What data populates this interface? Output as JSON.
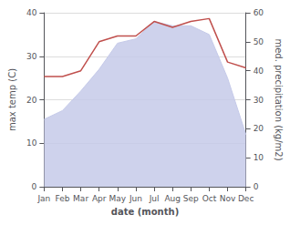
{
  "chart_data": {
    "type": "combo",
    "xlabel": "date (month)",
    "ylabel": "max temp (C)",
    "y2label": "med. precipitation (kg/m2)",
    "categories": [
      "Jan",
      "Feb",
      "Mar",
      "Apr",
      "May",
      "Jun",
      "Jul",
      "Aug",
      "Sep",
      "Oct",
      "Nov",
      "Dec"
    ],
    "series": [
      {
        "type": "area",
        "color": "#c5cae9",
        "values": [
          15.5,
          17.5,
          22,
          27,
          33,
          34,
          38,
          37,
          37,
          35,
          25,
          12
        ]
      },
      {
        "type": "line",
        "color": "#c0504d",
        "axis": "y2",
        "values": [
          38,
          38,
          40,
          50,
          52,
          52,
          57,
          55,
          57,
          58,
          43,
          41
        ]
      }
    ],
    "ylim": [
      0,
      40
    ],
    "yticks": [
      0,
      10,
      20,
      30,
      40
    ],
    "y2lim": [
      0,
      60
    ],
    "y2ticks": [
      0,
      10,
      20,
      30,
      40,
      50,
      60
    ],
    "grid": true
  }
}
